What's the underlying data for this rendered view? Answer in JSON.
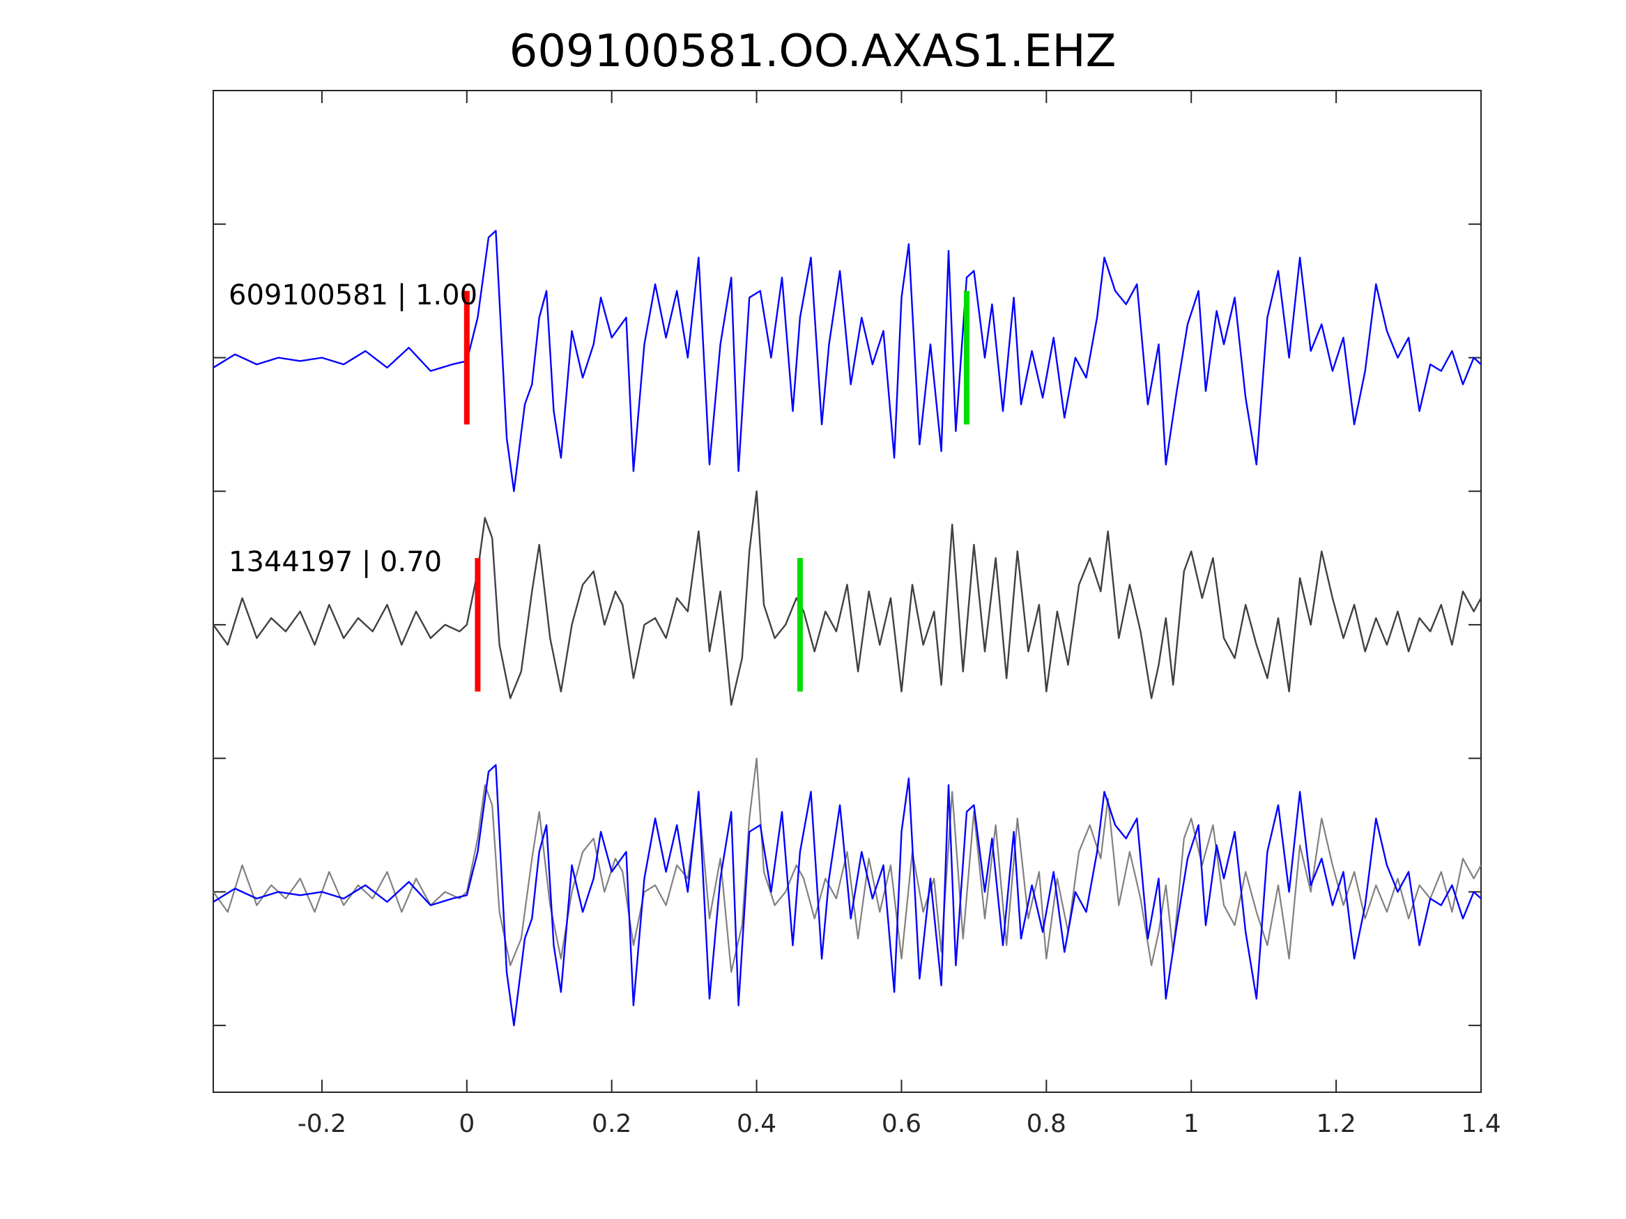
{
  "chart_data": {
    "type": "line",
    "title": "609100581.OO.AXAS1.EHZ",
    "xlabel": "",
    "ylabel": "",
    "xlim": [
      -0.35,
      1.4
    ],
    "ylim": [
      0,
      15
    ],
    "x_ticks": [
      -0.2,
      0,
      0.2,
      0.4,
      0.6,
      0.8,
      1,
      1.2,
      1.4
    ],
    "x_tick_labels": [
      "-0.2",
      "0",
      "0.2",
      "0.4",
      "0.6",
      "0.8",
      "1",
      "1.2",
      "1.4"
    ],
    "y_ticks": [
      1,
      3,
      5,
      7,
      9,
      11,
      13
    ],
    "y_tick_labels": [
      "",
      "",
      "",
      "",
      "",
      "",
      ""
    ],
    "grid": false,
    "colors": {
      "template": "#0000ff",
      "detected": "#404040",
      "overlay_detected": "#808080",
      "p_pick": "#ff0000",
      "s_pick": "#00dd00",
      "axes": "#262626"
    },
    "traces": [
      {
        "label": "609100581 | 1.00",
        "baseline": 11,
        "color": "#0000ff",
        "p_pick": 0.0,
        "s_pick": 0.69,
        "pick_halfheight": 1.0,
        "points": [
          [
            -0.35,
            10.85
          ],
          [
            -0.32,
            11.05
          ],
          [
            -0.29,
            10.9
          ],
          [
            -0.26,
            11.0
          ],
          [
            -0.23,
            10.95
          ],
          [
            -0.2,
            11.0
          ],
          [
            -0.17,
            10.9
          ],
          [
            -0.14,
            11.1
          ],
          [
            -0.11,
            10.85
          ],
          [
            -0.08,
            11.15
          ],
          [
            -0.05,
            10.8
          ],
          [
            -0.02,
            10.9
          ],
          [
            0.0,
            10.95
          ],
          [
            0.015,
            11.6
          ],
          [
            0.03,
            12.8
          ],
          [
            0.04,
            12.9
          ],
          [
            0.055,
            9.8
          ],
          [
            0.065,
            9.0
          ],
          [
            0.08,
            10.3
          ],
          [
            0.09,
            10.6
          ],
          [
            0.1,
            11.6
          ],
          [
            0.11,
            12.0
          ],
          [
            0.12,
            10.2
          ],
          [
            0.13,
            9.5
          ],
          [
            0.145,
            11.4
          ],
          [
            0.16,
            10.7
          ],
          [
            0.175,
            11.2
          ],
          [
            0.185,
            11.9
          ],
          [
            0.2,
            11.3
          ],
          [
            0.22,
            11.6
          ],
          [
            0.23,
            9.3
          ],
          [
            0.245,
            11.2
          ],
          [
            0.26,
            12.1
          ],
          [
            0.275,
            11.3
          ],
          [
            0.29,
            12.0
          ],
          [
            0.305,
            11.0
          ],
          [
            0.32,
            12.5
          ],
          [
            0.335,
            9.4
          ],
          [
            0.35,
            11.2
          ],
          [
            0.365,
            12.2
          ],
          [
            0.375,
            9.3
          ],
          [
            0.39,
            11.9
          ],
          [
            0.405,
            12.0
          ],
          [
            0.42,
            11.0
          ],
          [
            0.435,
            12.2
          ],
          [
            0.45,
            10.2
          ],
          [
            0.46,
            11.6
          ],
          [
            0.475,
            12.5
          ],
          [
            0.49,
            10.0
          ],
          [
            0.5,
            11.2
          ],
          [
            0.515,
            12.3
          ],
          [
            0.53,
            10.6
          ],
          [
            0.545,
            11.6
          ],
          [
            0.56,
            10.9
          ],
          [
            0.575,
            11.4
          ],
          [
            0.59,
            9.5
          ],
          [
            0.6,
            11.9
          ],
          [
            0.61,
            12.7
          ],
          [
            0.625,
            9.7
          ],
          [
            0.64,
            11.2
          ],
          [
            0.655,
            9.6
          ],
          [
            0.665,
            12.6
          ],
          [
            0.675,
            9.9
          ],
          [
            0.69,
            12.2
          ],
          [
            0.7,
            12.3
          ],
          [
            0.715,
            11.0
          ],
          [
            0.725,
            11.8
          ],
          [
            0.74,
            10.2
          ],
          [
            0.755,
            11.9
          ],
          [
            0.765,
            10.3
          ],
          [
            0.78,
            11.1
          ],
          [
            0.795,
            10.4
          ],
          [
            0.81,
            11.3
          ],
          [
            0.825,
            10.1
          ],
          [
            0.84,
            11.0
          ],
          [
            0.855,
            10.7
          ],
          [
            0.87,
            11.6
          ],
          [
            0.88,
            12.5
          ],
          [
            0.895,
            12.0
          ],
          [
            0.91,
            11.8
          ],
          [
            0.925,
            12.1
          ],
          [
            0.94,
            10.3
          ],
          [
            0.955,
            11.2
          ],
          [
            0.965,
            9.4
          ],
          [
            0.98,
            10.5
          ],
          [
            0.995,
            11.5
          ],
          [
            1.01,
            12.0
          ],
          [
            1.02,
            10.5
          ],
          [
            1.035,
            11.7
          ],
          [
            1.045,
            11.2
          ],
          [
            1.06,
            11.9
          ],
          [
            1.075,
            10.4
          ],
          [
            1.09,
            9.4
          ],
          [
            1.105,
            11.6
          ],
          [
            1.12,
            12.3
          ],
          [
            1.135,
            11.0
          ],
          [
            1.15,
            12.5
          ],
          [
            1.165,
            11.1
          ],
          [
            1.18,
            11.5
          ],
          [
            1.195,
            10.8
          ],
          [
            1.21,
            11.3
          ],
          [
            1.225,
            10.0
          ],
          [
            1.24,
            10.8
          ],
          [
            1.255,
            12.1
          ],
          [
            1.27,
            11.4
          ],
          [
            1.285,
            11.0
          ],
          [
            1.3,
            11.3
          ],
          [
            1.315,
            10.2
          ],
          [
            1.33,
            10.9
          ],
          [
            1.345,
            10.8
          ],
          [
            1.36,
            11.1
          ],
          [
            1.375,
            10.6
          ],
          [
            1.39,
            11.0
          ],
          [
            1.4,
            10.9
          ]
        ]
      },
      {
        "label": "1344197 | 0.70",
        "baseline": 7,
        "color": "#404040",
        "p_pick": 0.015,
        "s_pick": 0.46,
        "pick_halfheight": 1.0,
        "points": [
          [
            -0.35,
            7.0
          ],
          [
            -0.33,
            6.7
          ],
          [
            -0.31,
            7.4
          ],
          [
            -0.29,
            6.8
          ],
          [
            -0.27,
            7.1
          ],
          [
            -0.25,
            6.9
          ],
          [
            -0.23,
            7.2
          ],
          [
            -0.21,
            6.7
          ],
          [
            -0.19,
            7.3
          ],
          [
            -0.17,
            6.8
          ],
          [
            -0.15,
            7.1
          ],
          [
            -0.13,
            6.9
          ],
          [
            -0.11,
            7.3
          ],
          [
            -0.09,
            6.7
          ],
          [
            -0.07,
            7.2
          ],
          [
            -0.05,
            6.8
          ],
          [
            -0.03,
            7.0
          ],
          [
            -0.01,
            6.9
          ],
          [
            0.0,
            7.0
          ],
          [
            0.015,
            7.8
          ],
          [
            0.025,
            8.6
          ],
          [
            0.035,
            8.3
          ],
          [
            0.045,
            6.7
          ],
          [
            0.06,
            5.9
          ],
          [
            0.075,
            6.3
          ],
          [
            0.09,
            7.5
          ],
          [
            0.1,
            8.2
          ],
          [
            0.115,
            6.8
          ],
          [
            0.13,
            6.0
          ],
          [
            0.145,
            7.0
          ],
          [
            0.16,
            7.6
          ],
          [
            0.175,
            7.8
          ],
          [
            0.19,
            7.0
          ],
          [
            0.205,
            7.5
          ],
          [
            0.215,
            7.3
          ],
          [
            0.23,
            6.2
          ],
          [
            0.245,
            7.0
          ],
          [
            0.26,
            7.1
          ],
          [
            0.275,
            6.8
          ],
          [
            0.29,
            7.4
          ],
          [
            0.305,
            7.2
          ],
          [
            0.32,
            8.4
          ],
          [
            0.335,
            6.6
          ],
          [
            0.35,
            7.5
          ],
          [
            0.365,
            5.8
          ],
          [
            0.38,
            6.5
          ],
          [
            0.39,
            8.1
          ],
          [
            0.4,
            9.0
          ],
          [
            0.41,
            7.3
          ],
          [
            0.425,
            6.8
          ],
          [
            0.44,
            7.0
          ],
          [
            0.455,
            7.4
          ],
          [
            0.465,
            7.2
          ],
          [
            0.48,
            6.6
          ],
          [
            0.495,
            7.2
          ],
          [
            0.51,
            6.9
          ],
          [
            0.525,
            7.6
          ],
          [
            0.54,
            6.3
          ],
          [
            0.555,
            7.5
          ],
          [
            0.57,
            6.7
          ],
          [
            0.585,
            7.4
          ],
          [
            0.6,
            6.0
          ],
          [
            0.615,
            7.6
          ],
          [
            0.63,
            6.7
          ],
          [
            0.645,
            7.2
          ],
          [
            0.655,
            6.1
          ],
          [
            0.67,
            8.5
          ],
          [
            0.685,
            6.3
          ],
          [
            0.7,
            8.2
          ],
          [
            0.715,
            6.6
          ],
          [
            0.73,
            8.0
          ],
          [
            0.745,
            6.2
          ],
          [
            0.76,
            8.1
          ],
          [
            0.775,
            6.6
          ],
          [
            0.79,
            7.3
          ],
          [
            0.8,
            6.0
          ],
          [
            0.815,
            7.2
          ],
          [
            0.83,
            6.4
          ],
          [
            0.845,
            7.6
          ],
          [
            0.86,
            8.0
          ],
          [
            0.875,
            7.5
          ],
          [
            0.885,
            8.4
          ],
          [
            0.9,
            6.8
          ],
          [
            0.915,
            7.6
          ],
          [
            0.93,
            6.9
          ],
          [
            0.945,
            5.9
          ],
          [
            0.955,
            6.4
          ],
          [
            0.965,
            7.1
          ],
          [
            0.975,
            6.1
          ],
          [
            0.99,
            7.8
          ],
          [
            1.0,
            8.1
          ],
          [
            1.015,
            7.4
          ],
          [
            1.03,
            8.0
          ],
          [
            1.045,
            6.8
          ],
          [
            1.06,
            6.5
          ],
          [
            1.075,
            7.3
          ],
          [
            1.09,
            6.7
          ],
          [
            1.105,
            6.2
          ],
          [
            1.12,
            7.1
          ],
          [
            1.135,
            6.0
          ],
          [
            1.15,
            7.7
          ],
          [
            1.165,
            7.0
          ],
          [
            1.18,
            8.1
          ],
          [
            1.195,
            7.4
          ],
          [
            1.21,
            6.8
          ],
          [
            1.225,
            7.3
          ],
          [
            1.24,
            6.6
          ],
          [
            1.255,
            7.1
          ],
          [
            1.27,
            6.7
          ],
          [
            1.285,
            7.2
          ],
          [
            1.3,
            6.6
          ],
          [
            1.315,
            7.1
          ],
          [
            1.33,
            6.9
          ],
          [
            1.345,
            7.3
          ],
          [
            1.36,
            6.7
          ],
          [
            1.375,
            7.5
          ],
          [
            1.39,
            7.2
          ],
          [
            1.4,
            7.4
          ]
        ]
      }
    ],
    "overlay": {
      "baseline": 3,
      "description_traces": "template and detected traces superimposed"
    }
  }
}
